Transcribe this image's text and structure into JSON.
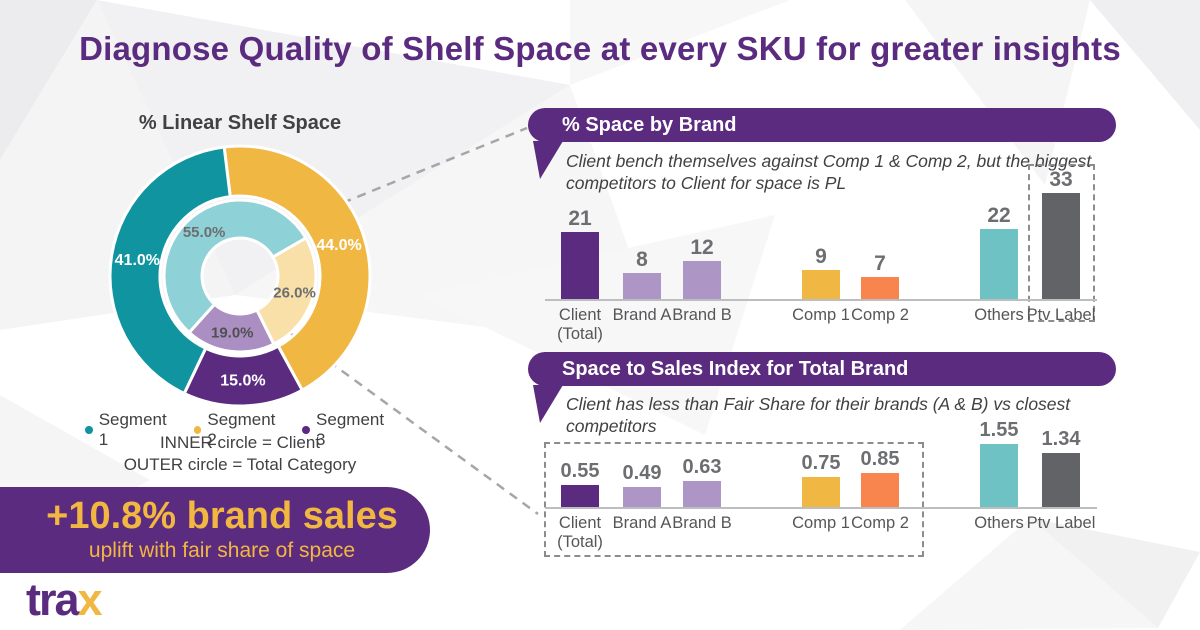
{
  "page_title": "Diagnose Quality of Shelf Space at every SKU for greater insights",
  "palette": {
    "purple": "#5b2b80",
    "light_purple": "#ad95c6",
    "yellow": "#f0b843",
    "light_yellow": "#f8e0a8",
    "orange": "#f9854e",
    "teal": "#0f94a0",
    "light_teal": "#8ed1d7",
    "teal_bar": "#6fc2c3",
    "gray_bar": "#616367"
  },
  "callout": {
    "headline": "+10.8% brand sales",
    "subline": "uplift with fair share of space"
  },
  "logo": {
    "main": "tra",
    "accent": "x"
  },
  "chart_data": [
    {
      "type": "pie",
      "title": "% Linear Shelf Space",
      "legend": [
        {
          "label": "Segment 1",
          "color": "#0f94a0"
        },
        {
          "label": "Segment 2",
          "color": "#f0b843"
        },
        {
          "label": "Segment 3",
          "color": "#5b2b80"
        }
      ],
      "notes": [
        "INNER circle = Client",
        "OUTER circle = Total Category"
      ],
      "rings": [
        {
          "name": "Client (inner circle)",
          "start_angle": 60,
          "segments": [
            {
              "segment": "Segment 2",
              "value": 26.0,
              "label": "26.0%",
              "color": "#f8e0a8",
              "label_color": "#6d6e71"
            },
            {
              "segment": "Segment 3",
              "value": 19.0,
              "label": "19.0%",
              "color": "#ab8fc3",
              "label_color": "#4f5052"
            },
            {
              "segment": "Segment 1",
              "value": 55.0,
              "label": "55.0%",
              "color": "#8ed1d7",
              "label_color": "#6d6e71"
            }
          ]
        },
        {
          "name": "Total Category (outer circle)",
          "start_angle": -7,
          "segments": [
            {
              "segment": "Segment 2",
              "value": 44.0,
              "label": "44.0%",
              "color": "#f0b843",
              "label_color": "#ffffff"
            },
            {
              "segment": "Segment 3",
              "value": 15.0,
              "label": "15.0%",
              "color": "#5b2b80",
              "label_color": "#ffffff"
            },
            {
              "segment": "Segment 1",
              "value": 41.0,
              "label": "41.0%",
              "color": "#0f94a0",
              "label_color": "#ffffff"
            }
          ]
        }
      ]
    },
    {
      "type": "bar",
      "title": "% Space by Brand",
      "annotation": [
        "Client bench themselves against Comp 1 & Comp 2, but the biggest",
        "competitors to Client for space is PL"
      ],
      "categories": [
        "Client (Total)",
        "Brand A",
        "Brand B",
        "Comp 1",
        "Comp 2",
        "Others",
        "Ptv Label"
      ],
      "values": [
        21,
        8,
        12,
        9,
        7,
        22,
        33
      ],
      "value_labels": [
        "21",
        "8",
        "12",
        "9",
        "7",
        "22",
        "33"
      ],
      "colors": [
        "#5b2b80",
        "#ad95c6",
        "#ad95c6",
        "#f0b843",
        "#f9854e",
        "#6fc2c3",
        "#616367"
      ],
      "highlighted_categories": [
        "Ptv Label"
      ],
      "ylim": [
        0,
        35
      ],
      "legend_position": "none"
    },
    {
      "type": "bar",
      "title": "Space to Sales Index for Total Brand",
      "annotation": [
        "Client has less than Fair Share for their brands (A & B) vs closest",
        "competitors"
      ],
      "categories": [
        "Client (Total)",
        "Brand A",
        "Brand B",
        "Comp 1",
        "Comp 2",
        "Others",
        "Ptv Label"
      ],
      "values": [
        0.55,
        0.49,
        0.63,
        0.75,
        0.85,
        1.55,
        1.34
      ],
      "value_labels": [
        "0.55",
        "0.49",
        "0.63",
        "0.75",
        "0.85",
        "1.55",
        "1.34"
      ],
      "colors": [
        "#5b2b80",
        "#ad95c6",
        "#ad95c6",
        "#f0b843",
        "#f9854e",
        "#6fc2c3",
        "#616367"
      ],
      "highlighted_categories": [
        "Client (Total)",
        "Brand A",
        "Brand B",
        "Comp 1",
        "Comp 2"
      ],
      "ylim": [
        0,
        1.7
      ],
      "legend_position": "none"
    }
  ]
}
